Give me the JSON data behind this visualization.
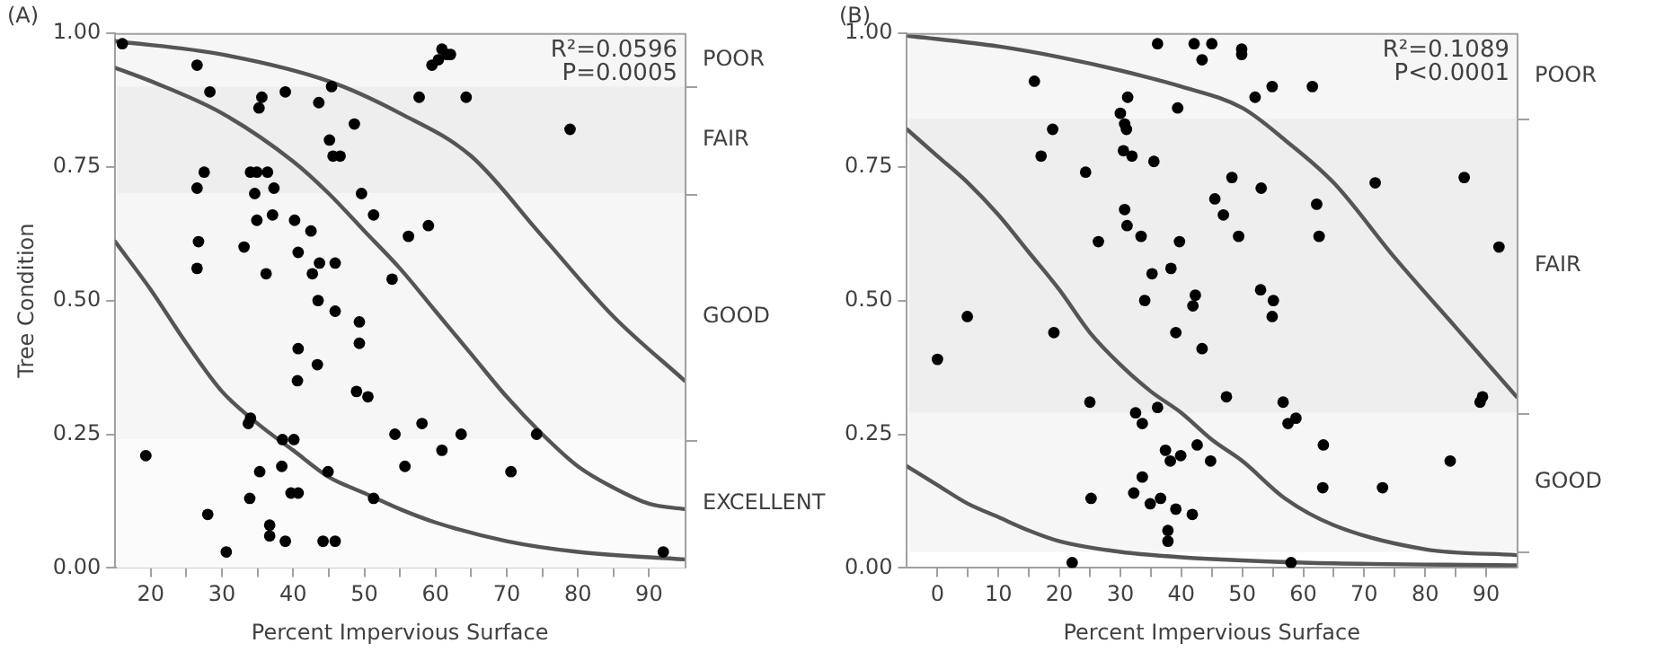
{
  "chart_data": [
    {
      "type": "scatter",
      "title": "(A)",
      "xlabel": "Percent Impervious Surface",
      "ylabel": "Tree Condition",
      "grid": false,
      "xlim": [
        15,
        95
      ],
      "xticks": [
        20,
        {
          "value": 25,
          "label": null
        },
        30,
        {
          "value": 35,
          "label": null
        },
        40,
        {
          "value": 45,
          "label": null
        },
        50,
        {
          "value": 55,
          "label": null
        },
        60,
        {
          "value": 65,
          "label": null
        },
        70,
        {
          "value": 75,
          "label": null
        },
        80,
        {
          "value": 85,
          "label": null
        },
        90
      ],
      "ylim": [
        0,
        1
      ],
      "yticks": [
        {
          "value": 0,
          "label": "0.00"
        },
        {
          "value": 0.25,
          "label": "0.25"
        },
        {
          "value": 0.5,
          "label": "0.50"
        },
        {
          "value": 0.75,
          "label": "0.75"
        },
        {
          "value": 1,
          "label": "1.00"
        }
      ],
      "bands": [
        {
          "axis": "y",
          "from": 0.9,
          "to": 1,
          "label": "POOR",
          "color": "#f6f6f6"
        },
        {
          "axis": "y",
          "from": 0.7,
          "to": 0.9,
          "label": "FAIR",
          "color": "#eeeeee"
        },
        {
          "axis": "y",
          "from": 0.24,
          "to": 0.7,
          "label": "GOOD",
          "color": "#f6f6f6"
        },
        {
          "axis": "y",
          "from": 0,
          "to": 0.24,
          "label": "EXCELLENT",
          "color": "#fbfbfb"
        }
      ],
      "annotations": [
        "R²=0.0596",
        "P=0.0005"
      ],
      "series": [
        {
          "marker": "circle",
          "color": "#000000",
          "x": [
            16.0,
            26.5,
            28.3,
            35.6,
            35.2,
            38.9,
            43.6,
            45.4,
            48.6,
            45.1,
            45.6,
            46.6,
            49.6,
            51.3,
            56.2,
            53.9,
            26.5,
            27.5,
            26.7,
            26.5,
            33.1,
            34.0,
            34.9,
            34.6,
            36.4,
            37.3,
            37.1,
            34.9,
            40.2,
            42.5,
            40.7,
            43.7,
            45.9,
            36.2,
            42.7,
            43.5,
            45.9,
            49.3,
            49.3,
            40.7,
            40.6,
            43.4,
            48.9,
            50.5,
            54.3,
            55.7,
            51.3,
            19.3,
            34.0,
            33.7,
            38.5,
            40.1,
            35.3,
            38.4,
            44.9,
            33.9,
            39.7,
            40.7,
            28.0,
            36.7,
            36.7,
            38.9,
            44.2,
            45.9,
            30.6,
            60.9,
            62.1,
            61.6,
            60.4,
            59.5,
            57.7,
            64.3,
            78.9,
            59.0,
            58.1,
            63.6,
            60.9,
            74.2,
            70.6,
            92.0
          ],
          "values": [
            0.98,
            0.94,
            0.89,
            0.88,
            0.86,
            0.89,
            0.87,
            0.9,
            0.83,
            0.8,
            0.77,
            0.77,
            0.7,
            0.66,
            0.62,
            0.54,
            0.71,
            0.74,
            0.61,
            0.56,
            0.6,
            0.74,
            0.74,
            0.7,
            0.74,
            0.71,
            0.66,
            0.65,
            0.65,
            0.63,
            0.59,
            0.57,
            0.57,
            0.55,
            0.55,
            0.5,
            0.48,
            0.46,
            0.42,
            0.41,
            0.35,
            0.38,
            0.33,
            0.32,
            0.25,
            0.19,
            0.13,
            0.21,
            0.28,
            0.27,
            0.24,
            0.24,
            0.18,
            0.19,
            0.18,
            0.13,
            0.14,
            0.14,
            0.1,
            0.08,
            0.06,
            0.05,
            0.05,
            0.05,
            0.03,
            0.97,
            0.96,
            0.96,
            0.95,
            0.94,
            0.88,
            0.88,
            0.82,
            0.64,
            0.27,
            0.25,
            0.22,
            0.25,
            0.18,
            0.03
          ]
        },
        {
          "type": "line",
          "marker": "none",
          "color": "#555555",
          "x": [
            15,
            30,
            45,
            55,
            65,
            75,
            85,
            95
          ],
          "values": [
            0.985,
            0.96,
            0.91,
            0.85,
            0.77,
            0.62,
            0.47,
            0.35
          ]
        },
        {
          "type": "line",
          "marker": "none",
          "color": "#555555",
          "x": [
            15,
            20,
            30,
            40,
            45,
            50,
            55,
            60,
            65,
            70,
            75,
            80,
            85,
            90,
            95
          ],
          "values": [
            0.935,
            0.91,
            0.85,
            0.76,
            0.7,
            0.63,
            0.56,
            0.48,
            0.4,
            0.32,
            0.25,
            0.19,
            0.15,
            0.12,
            0.11
          ]
        },
        {
          "type": "line",
          "marker": "none",
          "color": "#555555",
          "x": [
            15,
            20,
            25,
            30,
            35,
            40,
            45,
            50,
            55,
            60,
            70,
            80,
            95
          ],
          "values": [
            0.61,
            0.52,
            0.42,
            0.33,
            0.27,
            0.22,
            0.17,
            0.14,
            0.11,
            0.085,
            0.05,
            0.03,
            0.016
          ]
        }
      ]
    },
    {
      "type": "scatter",
      "title": "(B)",
      "xlabel": "Percent Impervious Surface",
      "grid": false,
      "xlim": [
        -5,
        95
      ],
      "xticks": [
        0,
        {
          "value": 5,
          "label": null
        },
        10,
        {
          "value": 15,
          "label": null
        },
        20,
        {
          "value": 25,
          "label": null
        },
        30,
        {
          "value": 35,
          "label": null
        },
        40,
        {
          "value": 45,
          "label": null
        },
        50,
        {
          "value": 55,
          "label": null
        },
        60,
        {
          "value": 65,
          "label": null
        },
        70,
        {
          "value": 75,
          "label": null
        },
        80,
        {
          "value": 85,
          "label": null
        },
        90
      ],
      "ylim": [
        0,
        1
      ],
      "yticks": [
        {
          "value": 0,
          "label": "0.00"
        },
        {
          "value": 0.25,
          "label": "0.25"
        },
        {
          "value": 0.5,
          "label": "0.50"
        },
        {
          "value": 0.75,
          "label": "0.75"
        },
        {
          "value": 1,
          "label": "1.00"
        }
      ],
      "bands": [
        {
          "axis": "y",
          "from": 0.84,
          "to": 1,
          "label": "POOR",
          "color": "#f6f6f6"
        },
        {
          "axis": "y",
          "from": 0.29,
          "to": 0.84,
          "label": "FAIR",
          "color": "#eeeeee"
        },
        {
          "axis": "y",
          "from": 0.03,
          "to": 0.29,
          "label": "GOOD",
          "color": "#f6f6f6"
        }
      ],
      "annotations": [
        "R²=0.1089",
        "P<0.0001"
      ],
      "series": [
        {
          "marker": "circle",
          "color": "#000000",
          "x": [
            0,
            4.9,
            15.9,
            18.9,
            17.0,
            19.1,
            24.3,
            26.4,
            25.0,
            25.2,
            22.1,
            30.0,
            31.2,
            30.7,
            31.0,
            30.5,
            31.9,
            35.5,
            36.1,
            30.7,
            31.1,
            33.4,
            39.4,
            39.7,
            35.2,
            34.0,
            38.3,
            39.1,
            41.9,
            42.3,
            43.4,
            32.5,
            33.6,
            36.1,
            37.4,
            38.2,
            39.9,
            42.6,
            32.2,
            33.6,
            34.9,
            36.6,
            39.1,
            41.8,
            37.8,
            37.8,
            42.1,
            43.4,
            45.0,
            49.9,
            49.9,
            52.1,
            54.9,
            61.5,
            48.3,
            53.1,
            45.5,
            46.9,
            49.4,
            62.2,
            62.6,
            71.8,
            86.4,
            92.1,
            53.0,
            55.1,
            54.9,
            47.4,
            56.7,
            57.5,
            58.8,
            89.4,
            89.0,
            44.8,
            63.3,
            84.1,
            63.2,
            73.0,
            58.0
          ],
          "values": [
            0.39,
            0.47,
            0.91,
            0.82,
            0.77,
            0.44,
            0.74,
            0.61,
            0.31,
            0.13,
            0.01,
            0.85,
            0.88,
            0.83,
            0.82,
            0.78,
            0.77,
            0.76,
            0.98,
            0.67,
            0.64,
            0.62,
            0.86,
            0.61,
            0.55,
            0.5,
            0.56,
            0.44,
            0.49,
            0.51,
            0.41,
            0.29,
            0.27,
            0.3,
            0.22,
            0.2,
            0.21,
            0.23,
            0.14,
            0.17,
            0.12,
            0.13,
            0.11,
            0.1,
            0.07,
            0.05,
            0.98,
            0.95,
            0.98,
            0.97,
            0.96,
            0.88,
            0.9,
            0.9,
            0.73,
            0.71,
            0.69,
            0.66,
            0.62,
            0.68,
            0.62,
            0.72,
            0.73,
            0.6,
            0.52,
            0.5,
            0.47,
            0.32,
            0.31,
            0.27,
            0.28,
            0.32,
            0.31,
            0.2,
            0.23,
            0.2,
            0.15,
            0.15,
            0.01
          ]
        },
        {
          "type": "line",
          "marker": "none",
          "color": "#555555",
          "x": [
            -5,
            10,
            20,
            30,
            40,
            50,
            57,
            65,
            75,
            85,
            95
          ],
          "values": [
            0.995,
            0.975,
            0.955,
            0.93,
            0.9,
            0.86,
            0.8,
            0.72,
            0.58,
            0.45,
            0.32
          ]
        },
        {
          "type": "line",
          "marker": "none",
          "color": "#555555",
          "x": [
            -5,
            0,
            5,
            10,
            15,
            20,
            25,
            30,
            35,
            40,
            45,
            50,
            57,
            65,
            80,
            95
          ],
          "values": [
            0.82,
            0.77,
            0.72,
            0.66,
            0.59,
            0.52,
            0.44,
            0.38,
            0.33,
            0.29,
            0.24,
            0.2,
            0.13,
            0.08,
            0.035,
            0.024
          ]
        },
        {
          "type": "line",
          "marker": "none",
          "color": "#555555",
          "x": [
            -5,
            0,
            5,
            10,
            15,
            20,
            30,
            40,
            60,
            95
          ],
          "values": [
            0.19,
            0.155,
            0.12,
            0.095,
            0.07,
            0.05,
            0.03,
            0.02,
            0.01,
            0.005
          ]
        }
      ]
    }
  ]
}
